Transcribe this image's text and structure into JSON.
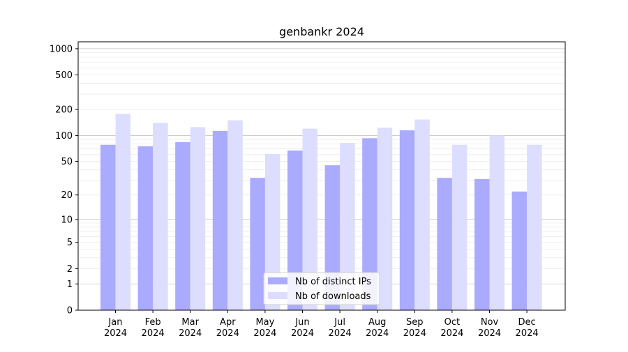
{
  "chart_data": {
    "type": "bar",
    "title": "genbankr 2024",
    "xlabel": "",
    "ylabel": "",
    "yscale": "log(1+y)",
    "ylim": [
      0,
      1200
    ],
    "yticks": [
      0,
      1,
      2,
      5,
      10,
      20,
      50,
      100,
      200,
      500,
      1000
    ],
    "ytick_labels": [
      "0",
      "1",
      "2",
      "5",
      "10",
      "20",
      "50",
      "100",
      "200",
      "500",
      "1000"
    ],
    "grid": true,
    "legend_position": "bottom-center",
    "categories": [
      "Jan\n2024",
      "Feb\n2024",
      "Mar\n2024",
      "Apr\n2024",
      "May\n2024",
      "Jun\n2024",
      "Jul\n2024",
      "Aug\n2024",
      "Sep\n2024",
      "Oct\n2024",
      "Nov\n2024",
      "Dec\n2024"
    ],
    "series": [
      {
        "name": "Nb of distinct IPs",
        "color": "#aaaaff",
        "values": [
          78,
          75,
          84,
          113,
          32,
          67,
          45,
          93,
          115,
          32,
          31,
          22
        ]
      },
      {
        "name": "Nb of downloads",
        "color": "#ddddff",
        "values": [
          178,
          140,
          125,
          150,
          61,
          120,
          82,
          123,
          153,
          78,
          100,
          78
        ]
      }
    ]
  }
}
